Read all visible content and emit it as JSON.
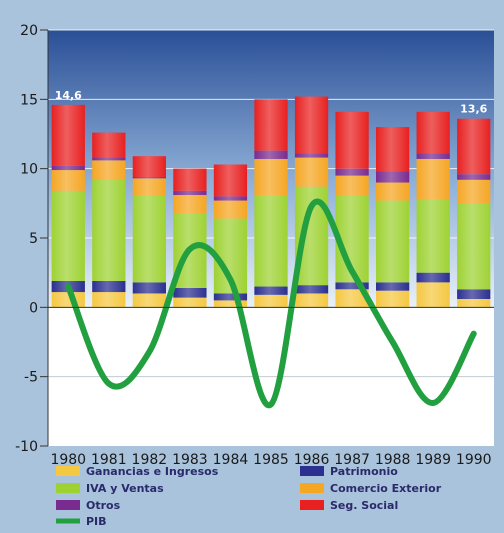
{
  "chart_data": {
    "type": "bar",
    "stacked": true,
    "categories": [
      "1980",
      "1981",
      "1982",
      "1983",
      "1984",
      "1985",
      "1986",
      "1987",
      "1988",
      "1989",
      "1990"
    ],
    "ylim": [
      -10,
      20
    ],
    "yticks": [
      -10,
      -5,
      0,
      5,
      10,
      15,
      20
    ],
    "series": [
      {
        "name": "Ganancias e Ingresos",
        "color": "#f5c842",
        "values": [
          1.1,
          1.1,
          1.0,
          0.7,
          0.5,
          0.9,
          1.0,
          1.3,
          1.2,
          1.8,
          0.6
        ]
      },
      {
        "name": "Patrimonio",
        "color": "#2b2f8f",
        "values": [
          0.8,
          0.8,
          0.8,
          0.7,
          0.5,
          0.6,
          0.6,
          0.5,
          0.6,
          0.7,
          0.7
        ]
      },
      {
        "name": "IVA y Ventas",
        "color": "#9ed233",
        "values": [
          6.5,
          7.3,
          6.3,
          5.4,
          5.4,
          6.6,
          7.1,
          6.3,
          5.9,
          5.3,
          6.2
        ]
      },
      {
        "name": "Comercio Exterior",
        "color": "#f5a623",
        "values": [
          1.5,
          1.4,
          1.2,
          1.3,
          1.3,
          2.6,
          2.1,
          1.4,
          1.3,
          2.9,
          1.7
        ]
      },
      {
        "name": "Otros",
        "color": "#7a2b8f",
        "values": [
          0.3,
          0.2,
          0.1,
          0.3,
          0.3,
          0.6,
          0.3,
          0.5,
          0.8,
          0.4,
          0.4
        ]
      },
      {
        "name": "Seg. Social",
        "color": "#e82020",
        "values": [
          4.4,
          1.8,
          1.5,
          1.6,
          2.3,
          3.7,
          4.1,
          4.1,
          3.2,
          3.0,
          4.0
        ]
      }
    ],
    "line_series": {
      "name": "PIB",
      "color": "#22a040",
      "values": [
        1.5,
        -5.5,
        -3.2,
        4.2,
        2.0,
        -7.0,
        7.3,
        2.6,
        -2.5,
        -6.9,
        -1.9
      ]
    },
    "data_labels": [
      {
        "category": "1980",
        "text": "14,6"
      },
      {
        "category": "1990",
        "text": "13,6"
      }
    ]
  },
  "legend": {
    "items": [
      {
        "label": "Ganancias e Ingresos",
        "color": "#f5c842",
        "kind": "box"
      },
      {
        "label": "Patrimonio",
        "color": "#2b2f8f",
        "kind": "box"
      },
      {
        "label": "IVA y Ventas",
        "color": "#9ed233",
        "kind": "box"
      },
      {
        "label": "Comercio Exterior",
        "color": "#f5a623",
        "kind": "box"
      },
      {
        "label": "Otros",
        "color": "#7a2b8f",
        "kind": "box"
      },
      {
        "label": "Seg. Social",
        "color": "#e82020",
        "kind": "box"
      },
      {
        "label": "PIB",
        "color": "#22a040",
        "kind": "line"
      }
    ]
  }
}
